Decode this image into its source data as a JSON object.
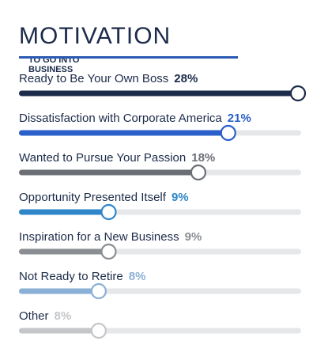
{
  "header": {
    "title": "MOTIVATION",
    "subtitle_line1": "TO GO INTO",
    "subtitle_line2": "BUSINESS"
  },
  "chart_data": {
    "type": "bar",
    "orientation": "horizontal",
    "ylim": [
      0,
      28
    ],
    "items": [
      {
        "label": "Ready to Be Your Own Boss",
        "value": 28,
        "display": "28%",
        "color": "#1c2b4a",
        "value_color": "#1c2b4a"
      },
      {
        "label": "Dissatisfaction with Corporate America",
        "value": 21,
        "display": "21%",
        "color": "#2b5fc9",
        "value_color": "#2b5fc9"
      },
      {
        "label": "Wanted to Pursue Your Passion",
        "value": 18,
        "display": "18%",
        "color": "#6b6f75",
        "value_color": "#6b6f75"
      },
      {
        "label": "Opportunity Presented Itself",
        "value": 9,
        "display": "9%",
        "color": "#2f86c9",
        "value_color": "#2f86c9"
      },
      {
        "label": "Inspiration for a New Business",
        "value": 9,
        "display": "9%",
        "color": "#8a8d92",
        "value_color": "#8a8d92"
      },
      {
        "label": "Not Ready to Retire",
        "value": 8,
        "display": "8%",
        "color": "#8ab0d6",
        "value_color": "#8ab0d6"
      },
      {
        "label": "Other",
        "value": 8,
        "display": "8%",
        "color": "#c4c6c9",
        "value_color": "#c4c6c9"
      }
    ],
    "track_color": "#e6e7e9"
  }
}
